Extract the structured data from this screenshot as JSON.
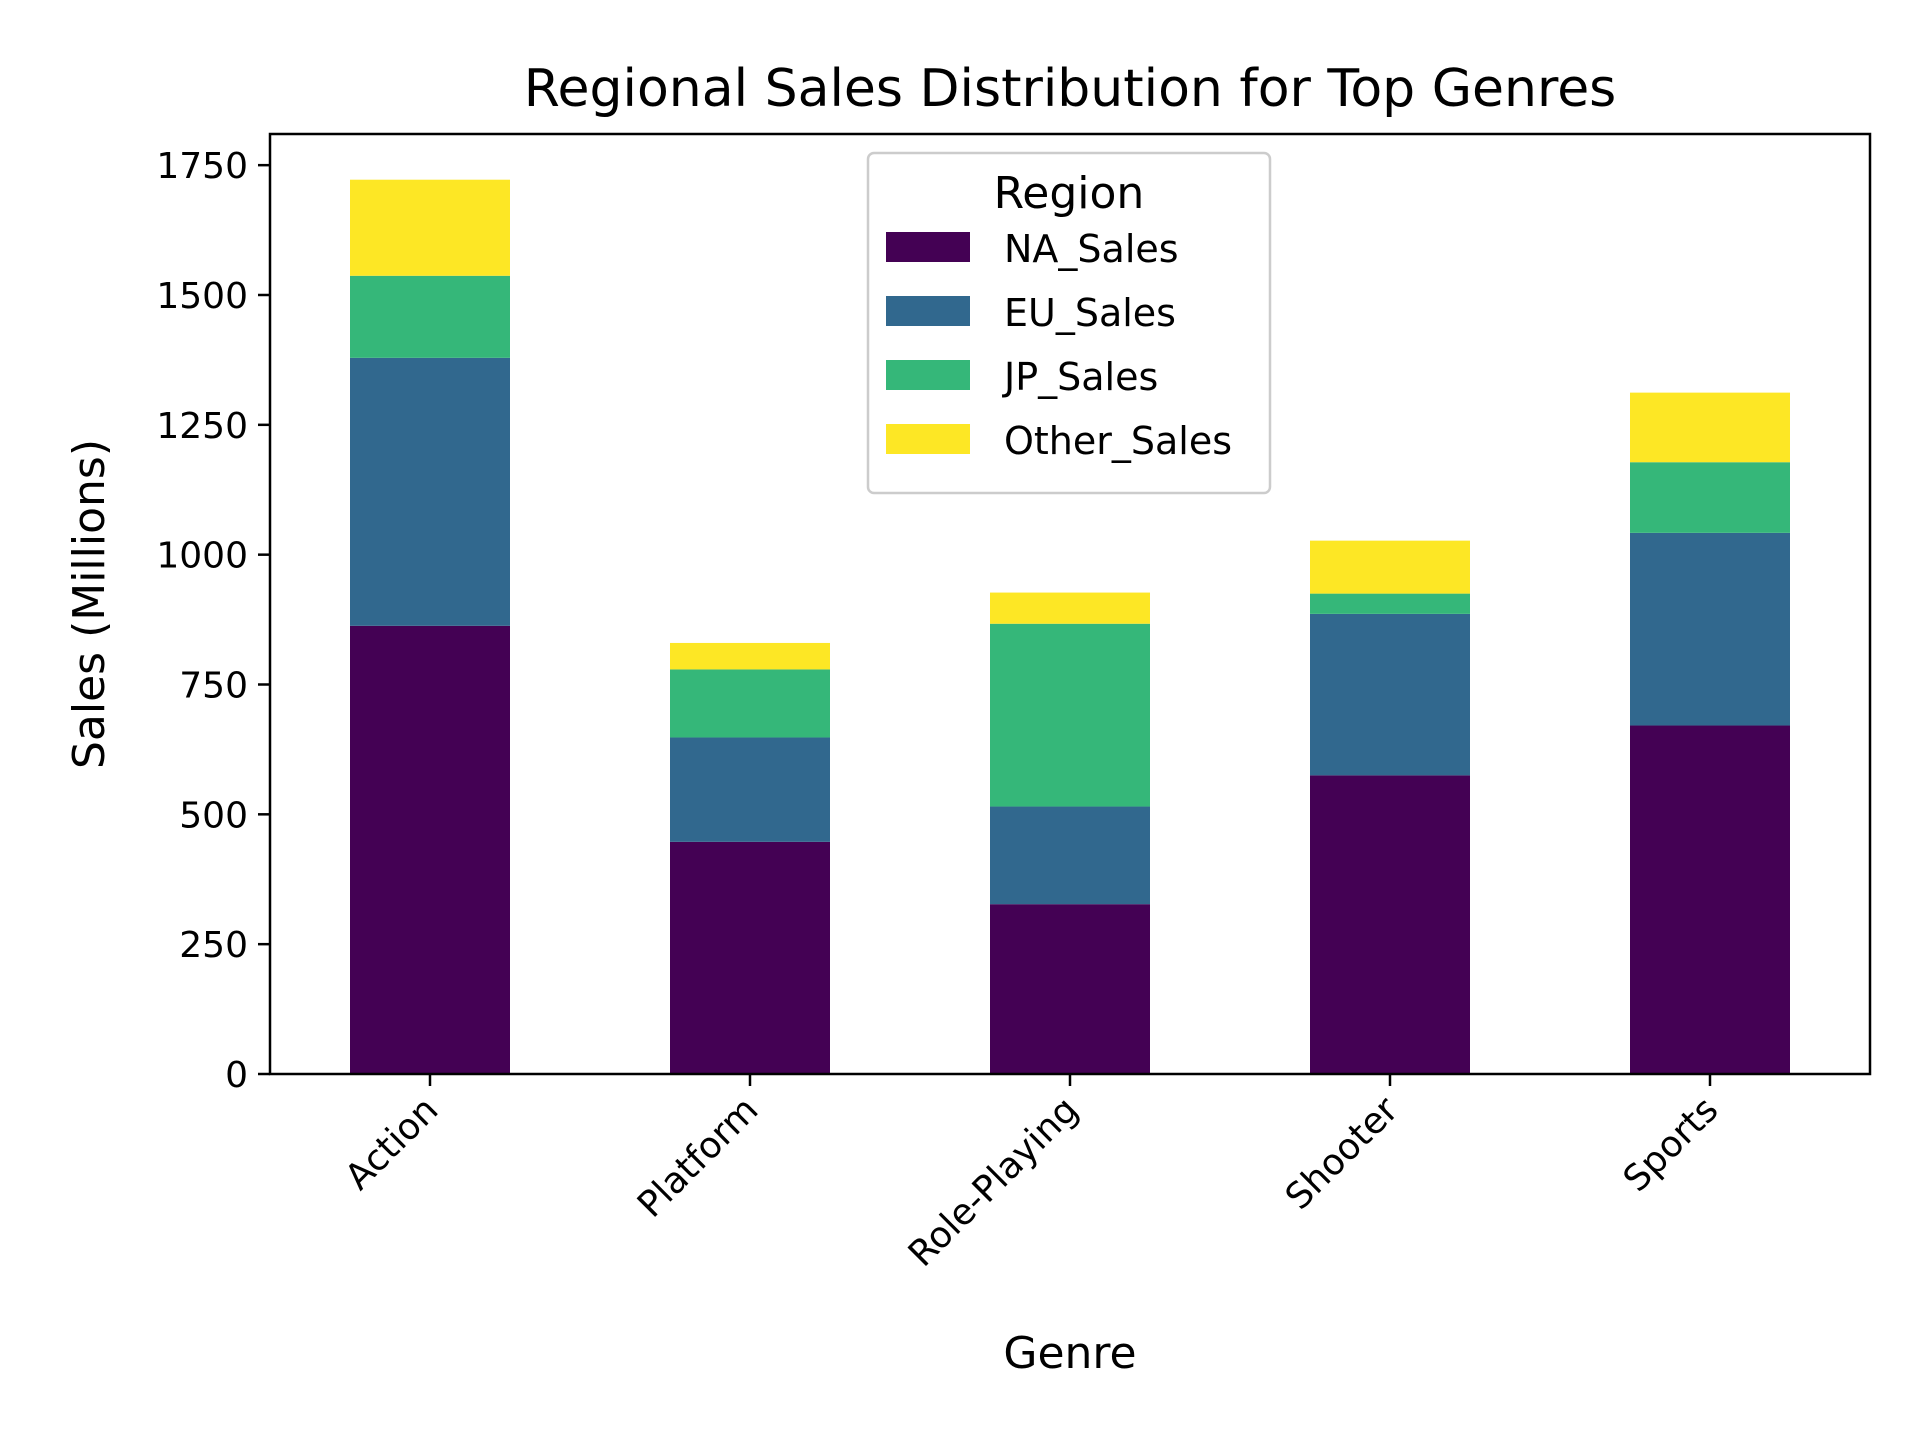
{
  "chart_data": {
    "type": "bar",
    "stacked": true,
    "title": "Regional Sales Distribution for Top Genres",
    "xlabel": "Genre",
    "ylabel": "Sales (Millions)",
    "ylim": [
      0,
      1810
    ],
    "yticks": [
      0,
      250,
      500,
      750,
      1000,
      1250,
      1500,
      1750
    ],
    "grid": false,
    "categories": [
      "Action",
      "Platform",
      "Role-Playing",
      "Shooter",
      "Sports"
    ],
    "legend": {
      "title": "Region",
      "placement": "top-center"
    },
    "series": [
      {
        "name": "NA_Sales",
        "color": "#440154",
        "values": [
          863,
          447,
          327,
          575,
          671
        ]
      },
      {
        "name": "EU_Sales",
        "color": "#31688e",
        "values": [
          516,
          201,
          188,
          311,
          371
        ]
      },
      {
        "name": "JP_Sales",
        "color": "#35b779",
        "values": [
          158,
          131,
          352,
          39,
          136
        ]
      },
      {
        "name": "Other_Sales",
        "color": "#fde725",
        "values": [
          185,
          51,
          60,
          102,
          134
        ]
      }
    ]
  }
}
